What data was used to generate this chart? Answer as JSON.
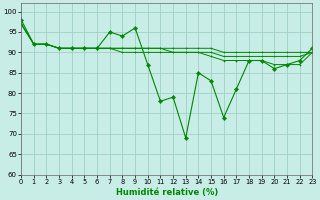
{
  "xlabel": "Humidité relative (%)",
  "background_color": "#c8ece6",
  "grid_color": "#a0cfc8",
  "line_color": "#008800",
  "xlim": [
    0,
    23
  ],
  "ylim": [
    60,
    102
  ],
  "yticks": [
    60,
    65,
    70,
    75,
    80,
    85,
    90,
    95,
    100
  ],
  "xticks": [
    0,
    1,
    2,
    3,
    4,
    5,
    6,
    7,
    8,
    9,
    10,
    11,
    12,
    13,
    14,
    15,
    16,
    17,
    18,
    19,
    20,
    21,
    22,
    23
  ],
  "series_volatile": [
    98,
    92,
    92,
    91,
    91,
    91,
    91,
    95,
    94,
    96,
    87,
    78,
    79,
    69,
    85,
    83,
    74,
    81,
    88,
    88,
    86,
    87,
    88,
    91
  ],
  "series_smooth1": [
    97,
    92,
    92,
    91,
    91,
    91,
    91,
    91,
    91,
    91,
    91,
    91,
    91,
    91,
    91,
    91,
    90,
    90,
    90,
    90,
    90,
    90,
    90,
    90
  ],
  "series_smooth2": [
    97,
    92,
    92,
    91,
    91,
    91,
    91,
    91,
    91,
    91,
    91,
    91,
    90,
    90,
    90,
    90,
    89,
    89,
    89,
    89,
    89,
    89,
    89,
    90
  ],
  "series_smooth3": [
    97,
    92,
    92,
    91,
    91,
    91,
    91,
    91,
    90,
    90,
    90,
    90,
    90,
    90,
    90,
    89,
    88,
    88,
    88,
    88,
    87,
    87,
    87,
    90
  ]
}
